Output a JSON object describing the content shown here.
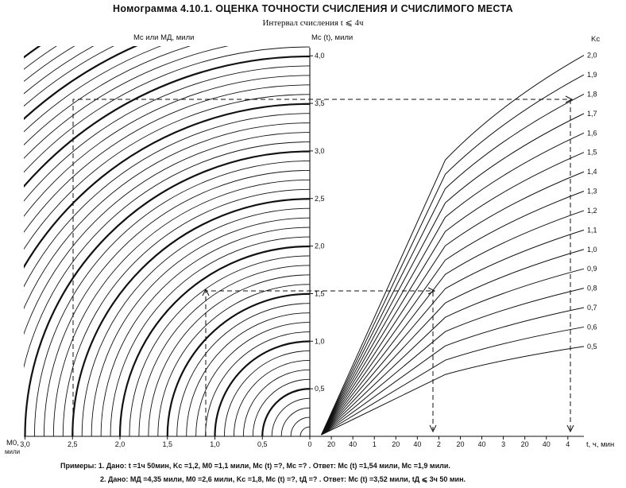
{
  "title": "Номограмма 4.10.1. ОЦЕНКА ТОЧНОСТИ СЧИСЛЕНИЯ И СЧИСЛИМОГО МЕСТА",
  "subtitle": "Интервал счисления t ⩽ 4ч",
  "axes": {
    "left_top_label": "Mс или MД, мили",
    "center_top_label": "Mс (t), мили",
    "right_top_label": "Kс",
    "bottom_left_label_1": "M0,",
    "bottom_left_label_2": "мили",
    "bottom_right_label": "t, ч, мин",
    "left_ticks": [
      "3,0",
      "2,5",
      "2,0",
      "1,5",
      "1,0",
      "0,5",
      "0"
    ],
    "center_ticks": [
      "4,0",
      "3,5",
      "3,0",
      "2,5",
      "2,0",
      "1,5",
      "1,0",
      "0,5"
    ],
    "time_ticks": [
      "20",
      "40",
      "1",
      "20",
      "40",
      "2",
      "20",
      "40",
      "3",
      "20",
      "40",
      "4"
    ],
    "k_labels": [
      "2,0",
      "1,9",
      "1,8",
      "1,7",
      "1,6",
      "1,5",
      "1,4",
      "1,3",
      "1,2",
      "1,1",
      "1,0",
      "0,9",
      "0,8",
      "0,7",
      "0,6",
      "0,5"
    ]
  },
  "examples": {
    "line1": "Примеры: 1. Дано: t =1ч 50мин, Kс =1,2, M0 =1,1 мили, Mс (t) =?, Mс =? .    Ответ: Mс (t) =1,54 мили, Mс =1,9 мили.",
    "line2": "2. Дано: MД =4,35 мили, M0 =2,6 мили, Kс =1,8, Mс (t) =?, tД =? .    Ответ: Mс (t) =3,52 мили, tД ⩽ 3ч 50 мин."
  },
  "chart_data": {
    "type": "line",
    "title": "Номограмма 4.10.1. ОЦЕНКА ТОЧНОСТИ СЧИСЛЕНИЯ И СЧИСЛИМОГО МЕСТА",
    "left_panel": {
      "type": "concentric-arcs",
      "x_range": [
        0,
        3.0
      ],
      "y_range": [
        0,
        4.0
      ],
      "arc_step": 0.1,
      "bold_every": 0.5
    },
    "right_panel": {
      "xlabel": "t, ч, мин",
      "ylabel": "Mс (t), мили",
      "x_range_hours": [
        0,
        4
      ],
      "y_range": [
        0,
        4.0
      ],
      "k_values": [
        2.0,
        1.9,
        1.8,
        1.7,
        1.6,
        1.5,
        1.4,
        1.3,
        1.2,
        1.1,
        1.0,
        0.9,
        0.8,
        0.7,
        0.6,
        0.5
      ]
    }
  }
}
